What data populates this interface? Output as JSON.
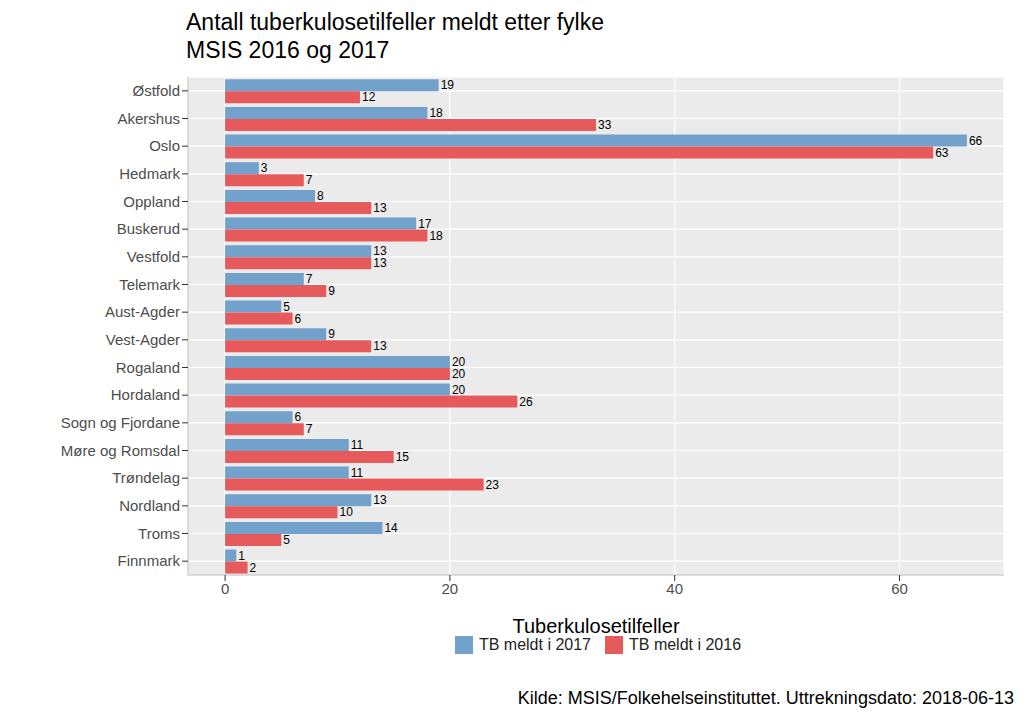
{
  "chart_data": {
    "type": "bar",
    "title": "Antall tuberkulosetilfeller meldt etter fylke",
    "subtitle": "MSIS 2016 og 2017",
    "x_label": "Tuberkulosetilfeller",
    "caption": "Kilde: MSIS/Folkehelseinstituttet. Uttrekningsdato: 2018-06-13",
    "orientation": "horizontal",
    "data_labels": true,
    "grid": true,
    "legend": "bottom",
    "categories": [
      "Østfold",
      "Akershus",
      "Oslo",
      "Hedmark",
      "Oppland",
      "Buskerud",
      "Vestfold",
      "Telemark",
      "Aust-Agder",
      "Vest-Agder",
      "Rogaland",
      "Hordaland",
      "Sogn og Fjordane",
      "Møre og Romsdal",
      "Trøndelag",
      "Nordland",
      "Troms",
      "Finnmark"
    ],
    "series": [
      {
        "name": "TB meldt i 2017",
        "color": "#72A1CC",
        "values": [
          19,
          18,
          66,
          3,
          8,
          17,
          13,
          7,
          5,
          9,
          20,
          20,
          6,
          11,
          11,
          13,
          14,
          1
        ]
      },
      {
        "name": "TB meldt i 2016",
        "color": "#E65A5C",
        "values": [
          12,
          33,
          63,
          7,
          13,
          18,
          13,
          9,
          6,
          13,
          20,
          26,
          7,
          15,
          23,
          10,
          5,
          2
        ]
      }
    ],
    "xlim": [
      -3.3,
      69.3
    ],
    "xticks": [
      0,
      20,
      40,
      60
    ]
  }
}
